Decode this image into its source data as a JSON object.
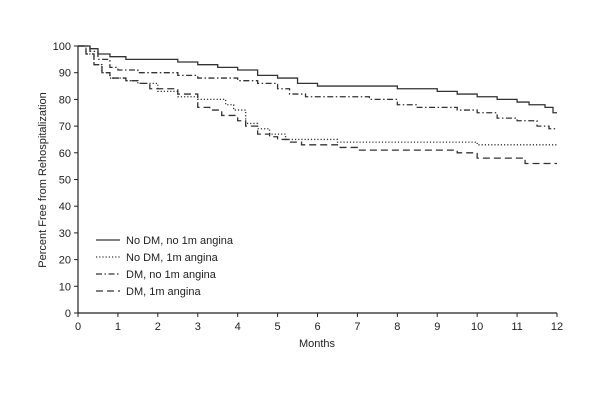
{
  "chart_data": {
    "type": "line",
    "title": "",
    "xlabel": "Months",
    "ylabel": "Percent Free from Rehospitalization",
    "xlim": [
      0,
      12
    ],
    "ylim": [
      0,
      100
    ],
    "xticks": [
      0,
      1,
      2,
      3,
      4,
      5,
      6,
      7,
      8,
      9,
      10,
      11,
      12
    ],
    "yticks": [
      0,
      10,
      20,
      30,
      40,
      50,
      60,
      70,
      80,
      90,
      100
    ],
    "grid": false,
    "step": true,
    "legend_position": "lower-left",
    "series": [
      {
        "name": "No DM, no 1m angina",
        "style": "solid",
        "points": [
          [
            0,
            100
          ],
          [
            0.3,
            99
          ],
          [
            0.5,
            97
          ],
          [
            0.8,
            96
          ],
          [
            1.2,
            95
          ],
          [
            2,
            95
          ],
          [
            2.5,
            94
          ],
          [
            3,
            93
          ],
          [
            3.5,
            92
          ],
          [
            4,
            91
          ],
          [
            4.5,
            89
          ],
          [
            5,
            88
          ],
          [
            5.5,
            86
          ],
          [
            6,
            85
          ],
          [
            7,
            85
          ],
          [
            8,
            84
          ],
          [
            9,
            83
          ],
          [
            9.5,
            82
          ],
          [
            10,
            81
          ],
          [
            10.5,
            80
          ],
          [
            11,
            79
          ],
          [
            11.3,
            78
          ],
          [
            11.7,
            77
          ],
          [
            11.9,
            75
          ],
          [
            12,
            75
          ]
        ]
      },
      {
        "name": "No DM, 1m angina",
        "style": "dotted",
        "points": [
          [
            0,
            100
          ],
          [
            0.2,
            97
          ],
          [
            0.4,
            93
          ],
          [
            0.6,
            90
          ],
          [
            0.8,
            88
          ],
          [
            1.2,
            87
          ],
          [
            1.5,
            86
          ],
          [
            2,
            83
          ],
          [
            2.5,
            81
          ],
          [
            3,
            80
          ],
          [
            3.5,
            80
          ],
          [
            3.7,
            78
          ],
          [
            3.9,
            76
          ],
          [
            4.2,
            71
          ],
          [
            4.5,
            69
          ],
          [
            4.8,
            67
          ],
          [
            5.2,
            65
          ],
          [
            5.5,
            65
          ],
          [
            6,
            65
          ],
          [
            6.5,
            64
          ],
          [
            7,
            64
          ],
          [
            7.5,
            64
          ],
          [
            8,
            64
          ],
          [
            8.5,
            64
          ],
          [
            9,
            64
          ],
          [
            9.5,
            64
          ],
          [
            10,
            63
          ],
          [
            10.5,
            63
          ],
          [
            11,
            63
          ],
          [
            12,
            63
          ]
        ]
      },
      {
        "name": "DM, no 1m angina",
        "style": "dashdot",
        "points": [
          [
            0,
            100
          ],
          [
            0.3,
            98
          ],
          [
            0.5,
            95
          ],
          [
            0.8,
            92
          ],
          [
            1,
            91
          ],
          [
            1.5,
            90
          ],
          [
            2,
            90
          ],
          [
            2.5,
            89
          ],
          [
            3,
            88
          ],
          [
            3.5,
            88
          ],
          [
            4,
            87
          ],
          [
            4.5,
            86
          ],
          [
            5,
            84
          ],
          [
            5.3,
            82
          ],
          [
            5.7,
            81
          ],
          [
            6,
            81
          ],
          [
            7,
            81
          ],
          [
            7.3,
            80
          ],
          [
            8,
            78
          ],
          [
            8.5,
            77
          ],
          [
            9,
            77
          ],
          [
            9.5,
            76
          ],
          [
            10,
            75
          ],
          [
            10.5,
            73
          ],
          [
            11,
            72
          ],
          [
            11.5,
            70
          ],
          [
            11.8,
            69
          ],
          [
            12,
            69
          ]
        ]
      },
      {
        "name": "DM, 1m angina",
        "style": "dashed",
        "points": [
          [
            0,
            100
          ],
          [
            0.2,
            97
          ],
          [
            0.4,
            93
          ],
          [
            0.6,
            90
          ],
          [
            0.8,
            88
          ],
          [
            1.2,
            87
          ],
          [
            1.5,
            86
          ],
          [
            1.8,
            84
          ],
          [
            2.2,
            84
          ],
          [
            2.5,
            82
          ],
          [
            3,
            77
          ],
          [
            3.3,
            76
          ],
          [
            3.6,
            74
          ],
          [
            4,
            72
          ],
          [
            4.2,
            70
          ],
          [
            4.5,
            67
          ],
          [
            4.8,
            66
          ],
          [
            5,
            65
          ],
          [
            5.3,
            64
          ],
          [
            5.6,
            63
          ],
          [
            6,
            63
          ],
          [
            6.5,
            62
          ],
          [
            7,
            61
          ],
          [
            7.5,
            61
          ],
          [
            8,
            61
          ],
          [
            8.5,
            61
          ],
          [
            9,
            61
          ],
          [
            9.5,
            60
          ],
          [
            10,
            58
          ],
          [
            10.5,
            58
          ],
          [
            11,
            58
          ],
          [
            11.2,
            56
          ],
          [
            11.5,
            56
          ],
          [
            12,
            56
          ]
        ]
      }
    ]
  }
}
